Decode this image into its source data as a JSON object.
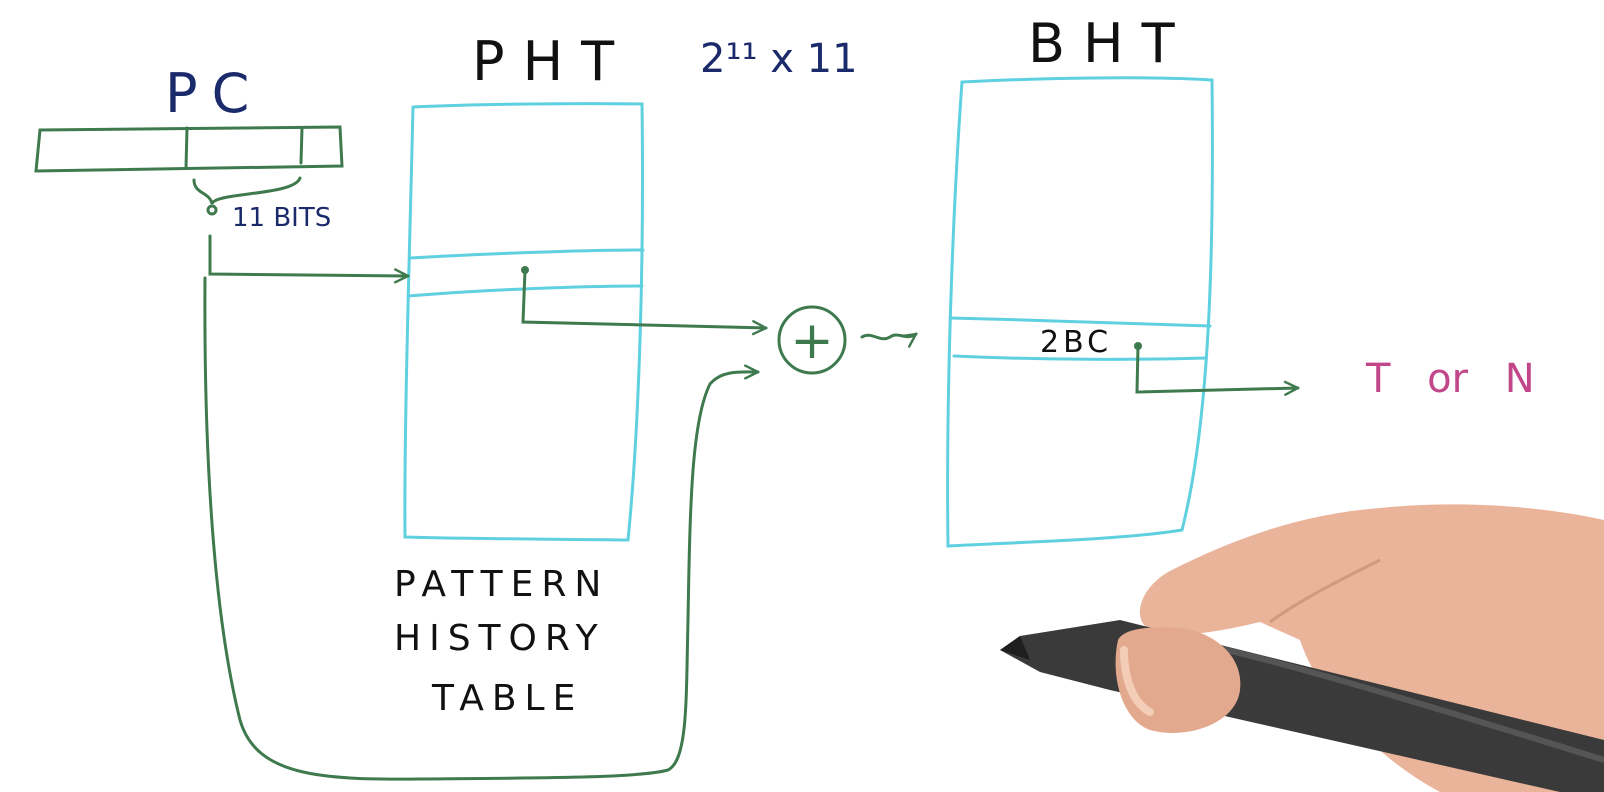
{
  "labels": {
    "pc": "PC",
    "pc_field_bits": "11 BITS",
    "pht": "PHT",
    "pht_size": "2¹¹ x 11",
    "pht_name_line1": "PATTERN",
    "pht_name_line2": "HISTORY",
    "pht_name_line3": "TABLE",
    "bht": "BHT",
    "bht_entry": "2BC",
    "xor_symbol": "+",
    "output": "T or N"
  },
  "colors": {
    "pc_register": "#3f7a4e",
    "arrows": "#3f7a4e",
    "tables": "#5fd0e0",
    "navy_text": "#1b2a6b",
    "black_text": "#111111",
    "output_text": "#c2478a",
    "skin": "#e9b49a",
    "pen": "#3a3a3a"
  }
}
